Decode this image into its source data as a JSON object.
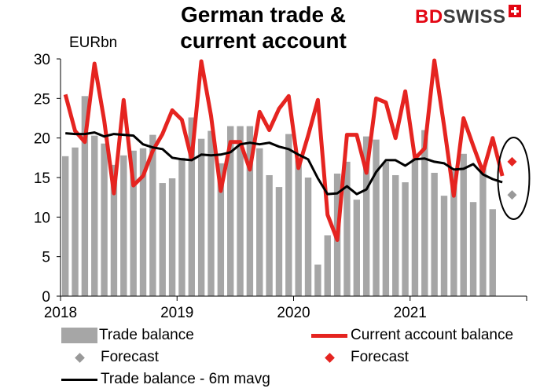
{
  "title": "German trade & current account",
  "unit": "EURbn",
  "logo": {
    "part1": "BD",
    "part2": "SWISS"
  },
  "colors": {
    "trade_bar": "#a6a6a6",
    "current_account": "#e52420",
    "mavg": "#000000",
    "forecast_trade": "#999999",
    "forecast_ca": "#e52420"
  },
  "legend": {
    "trade_balance": "Trade balance",
    "current_account": "Current account balance",
    "forecast_trade": "Forecast",
    "forecast_ca": "Forecast",
    "mavg": "Trade balance - 6m mavg"
  },
  "chart_data": {
    "type": "bar",
    "ylim": [
      0,
      30
    ],
    "yticks": [
      "0",
      "5",
      "10",
      "15",
      "20",
      "25",
      "30"
    ],
    "xtick_labels": [
      "2018",
      "2019",
      "2020",
      "2021"
    ],
    "x_range": [
      "2018-01",
      "2021-12"
    ],
    "months": [
      "2018-01",
      "2018-02",
      "2018-03",
      "2018-04",
      "2018-05",
      "2018-06",
      "2018-07",
      "2018-08",
      "2018-09",
      "2018-10",
      "2018-11",
      "2018-12",
      "2019-01",
      "2019-02",
      "2019-03",
      "2019-04",
      "2019-05",
      "2019-06",
      "2019-07",
      "2019-08",
      "2019-09",
      "2019-10",
      "2019-11",
      "2019-12",
      "2020-01",
      "2020-02",
      "2020-03",
      "2020-04",
      "2020-05",
      "2020-06",
      "2020-07",
      "2020-08",
      "2020-09",
      "2020-10",
      "2020-11",
      "2020-12",
      "2021-01",
      "2021-02",
      "2021-03",
      "2021-04",
      "2021-05",
      "2021-06",
      "2021-07",
      "2021-08",
      "2021-09",
      "2021-10"
    ],
    "series": [
      {
        "name": "Trade balance",
        "type": "bar",
        "values": [
          17.7,
          18.8,
          25.3,
          20.3,
          19.3,
          16.6,
          17.8,
          18.4,
          18.7,
          20.4,
          14.3,
          14.9,
          17.5,
          22.6,
          19.9,
          20.9,
          16.8,
          21.5,
          21.5,
          21.5,
          18.7,
          15.3,
          13.8,
          20.5,
          17.2,
          15.0,
          4.0,
          7.7,
          15.5,
          17.0,
          12.2,
          20.2,
          19.8,
          17.0,
          15.3,
          14.4,
          17.4,
          21.0,
          15.6,
          12.7,
          15.8,
          18.0,
          11.9,
          16.2,
          11.0,
          null
        ]
      },
      {
        "name": "Current account balance",
        "type": "line",
        "values": [
          25.5,
          20.9,
          19.5,
          29.4,
          22.2,
          13.0,
          24.8,
          14.0,
          15.2,
          18.4,
          20.5,
          23.5,
          22.3,
          17.3,
          29.7,
          22.8,
          13.3,
          19.5,
          19.5,
          16.0,
          23.3,
          21.0,
          23.7,
          25.3,
          16.2,
          20.3,
          24.8,
          10.3,
          7.1,
          20.4,
          20.4,
          15.6,
          25.0,
          24.5,
          20.0,
          25.9,
          17.4,
          18.7,
          29.8,
          21.5,
          12.7,
          22.5,
          19.0,
          15.7,
          20.0,
          15.2
        ]
      },
      {
        "name": "Trade balance - 6m mavg",
        "type": "line",
        "values": [
          20.6,
          20.5,
          20.5,
          20.7,
          20.2,
          20.5,
          20.4,
          20.3,
          19.2,
          18.8,
          18.6,
          17.5,
          17.3,
          17.2,
          17.9,
          17.8,
          17.9,
          18.2,
          19.2,
          19.4,
          19.2,
          19.4,
          18.9,
          18.6,
          17.9,
          17.3,
          14.9,
          12.9,
          13.0,
          13.9,
          12.9,
          13.5,
          15.7,
          17.2,
          17.2,
          16.5,
          17.3,
          17.4,
          17.0,
          16.8,
          16.0,
          16.1,
          16.7,
          15.4,
          14.8,
          14.4
        ]
      },
      {
        "name": "Forecast",
        "type": "point",
        "x": "2021-11",
        "values": [
          12.8
        ]
      },
      {
        "name": "Forecast",
        "type": "point",
        "x": "2021-11",
        "values": [
          17.0
        ]
      }
    ]
  }
}
